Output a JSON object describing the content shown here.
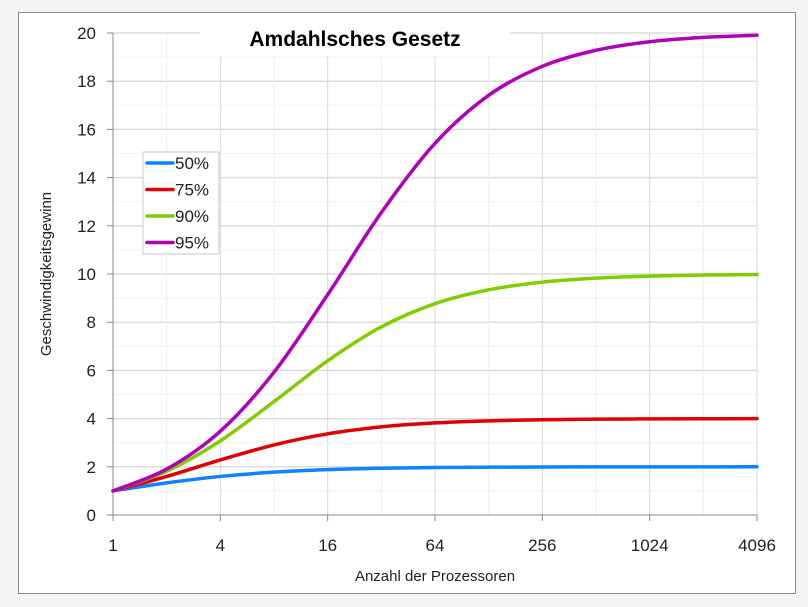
{
  "chart_data": {
    "type": "line",
    "title": "Amdahlsches Gesetz",
    "xlabel": "Anzahl der Prozessoren",
    "ylabel": "Geschwindigkeitsgewinn",
    "x_scale": "log2",
    "x": [
      1,
      2,
      4,
      8,
      16,
      32,
      64,
      128,
      256,
      512,
      1024,
      2048,
      4096
    ],
    "x_ticks": [
      "1",
      "4",
      "16",
      "64",
      "256",
      "1024",
      "4096"
    ],
    "y_ticks": [
      "0",
      "2",
      "4",
      "6",
      "8",
      "10",
      "12",
      "14",
      "16",
      "18",
      "20"
    ],
    "ylim": [
      0,
      20
    ],
    "xlim": [
      1,
      4096
    ],
    "grid": true,
    "legend_position": "left",
    "series": [
      {
        "name": "50%",
        "color": "#0a84ff",
        "values": [
          1,
          1.333,
          1.6,
          1.778,
          1.882,
          1.939,
          1.969,
          1.984,
          1.992,
          1.996,
          1.998,
          1.999,
          2.0
        ]
      },
      {
        "name": "75%",
        "color": "#e00000",
        "values": [
          1,
          1.6,
          2.286,
          2.909,
          3.368,
          3.657,
          3.821,
          3.908,
          3.953,
          3.977,
          3.988,
          3.994,
          3.997
        ]
      },
      {
        "name": "90%",
        "color": "#7fcc00",
        "values": [
          1,
          1.818,
          3.077,
          4.706,
          6.4,
          7.805,
          8.767,
          9.343,
          9.66,
          9.827,
          9.913,
          9.956,
          9.978
        ]
      },
      {
        "name": "95%",
        "color": "#b000b8",
        "values": [
          1,
          1.905,
          3.478,
          5.926,
          9.143,
          12.549,
          15.422,
          17.415,
          18.618,
          19.284,
          19.637,
          19.818,
          19.908
        ]
      }
    ]
  }
}
